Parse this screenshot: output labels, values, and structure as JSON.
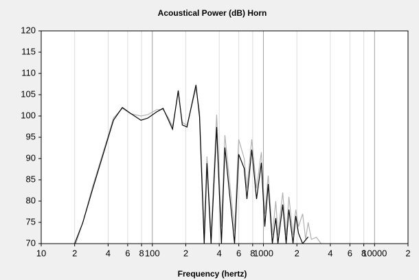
{
  "chart_data": {
    "type": "line",
    "title": "Acoustical Power (dB)   Horn",
    "x_label": "Frequency (hertz)",
    "x_scale": "log",
    "grid": true,
    "xlim": [
      10,
      20000
    ],
    "ylim": [
      70,
      120
    ],
    "yticks": [
      70,
      75,
      80,
      85,
      90,
      95,
      100,
      105,
      110,
      115,
      120
    ],
    "xticks": [
      10,
      {
        "value": 20,
        "label": "2"
      },
      {
        "value": 40,
        "label": "4"
      },
      {
        "value": 60,
        "label": "6"
      },
      {
        "value": 80,
        "label": "8"
      },
      100,
      {
        "value": 200,
        "label": "2"
      },
      {
        "value": 400,
        "label": "4"
      },
      {
        "value": 600,
        "label": "6"
      },
      {
        "value": 800,
        "label": "8"
      },
      1000,
      {
        "value": 2000,
        "label": "2"
      },
      {
        "value": 4000,
        "label": "4"
      },
      {
        "value": 6000,
        "label": "6"
      },
      {
        "value": 8000,
        "label": "8"
      },
      10000,
      {
        "value": 20000,
        "label": "2"
      }
    ],
    "series": [
      {
        "color": "#b0b0b0",
        "x": [
          20.5,
          24,
          29.1,
          36.1,
          44.7,
          53.7,
          63.8,
          79,
          91,
          110,
          125,
          140,
          152,
          171,
          186,
          205,
          247,
          266,
          293,
          310,
          338,
          379,
          419,
          450,
          550,
          599,
          671,
          710,
          785,
          867,
          958,
          1029,
          1105,
          1203,
          1291,
          1349,
          1491,
          1600,
          1694,
          1845,
          1954,
          2070,
          2254,
          2400,
          2523,
          2700,
          3000,
          3300
        ],
        "values": [
          70,
          75.5,
          83.5,
          91.5,
          99.5,
          101.8,
          100.5,
          100,
          100.3,
          101.5,
          101.5,
          99.5,
          97.5,
          105.5,
          98.5,
          97.8,
          106.5,
          101,
          73,
          90.5,
          72,
          100.3,
          74,
          95.5,
          73,
          94.5,
          90,
          83,
          94.5,
          83,
          91.5,
          77,
          86,
          72,
          80,
          72,
          82,
          72,
          81,
          72,
          78,
          74,
          77,
          71,
          75,
          71,
          71.5,
          70
        ]
      },
      {
        "color": "#000000",
        "x": [
          20,
          23.6,
          29.1,
          36.1,
          44.7,
          53.7,
          63.8,
          79,
          91,
          110,
          125,
          140,
          152,
          171,
          186,
          205,
          247,
          266,
          293,
          310,
          338,
          379,
          419,
          450,
          550,
          599,
          671,
          710,
          785,
          867,
          958,
          1029,
          1105,
          1203,
          1291,
          1349,
          1491,
          1600,
          1694,
          1845,
          1954,
          2070,
          2254,
          2523
        ],
        "values": [
          70,
          74.8,
          82.9,
          91,
          99,
          102,
          100.6,
          99,
          99.5,
          101,
          101.8,
          99,
          96.9,
          106,
          97.9,
          97.4,
          107.3,
          99.8,
          70,
          88.9,
          70,
          97.4,
          70,
          92.6,
          70,
          91,
          87.7,
          80.5,
          92.1,
          80.5,
          89,
          74,
          84,
          70,
          76,
          70,
          79.2,
          70,
          78,
          70,
          76.5,
          72.4,
          70,
          71.6
        ]
      }
    ]
  }
}
